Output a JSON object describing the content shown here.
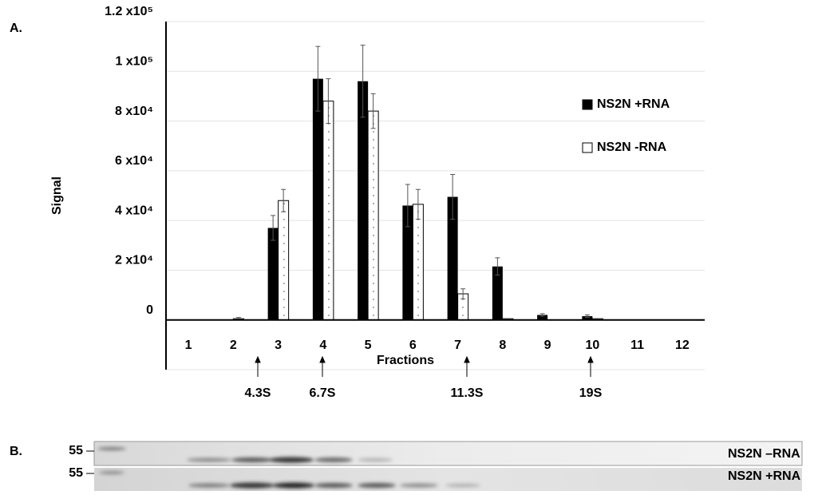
{
  "panel_a_label": "A.",
  "panel_b_label": "B.",
  "chart_data": {
    "type": "bar",
    "y_label": "Signal",
    "x_label": "Fractions",
    "categories": [
      "1",
      "2",
      "3",
      "4",
      "5",
      "6",
      "7",
      "8",
      "9",
      "10",
      "11",
      "12"
    ],
    "series": [
      {
        "name": "NS2N +RNA",
        "color": "#000000",
        "values": [
          0,
          0,
          37000,
          97000,
          96000,
          46000,
          49500,
          21500,
          2000,
          1500,
          0,
          0
        ],
        "errors": [
          0,
          0,
          5000,
          13000,
          14500,
          8500,
          9000,
          3500,
          500,
          500,
          0,
          0
        ]
      },
      {
        "name": "NS2N -RNA",
        "color": "#ffffff",
        "values": [
          0,
          500,
          48000,
          88000,
          84000,
          46500,
          10500,
          500,
          0,
          500,
          0,
          0
        ],
        "errors": [
          0,
          500,
          4500,
          9000,
          7000,
          6000,
          2000,
          0,
          0,
          0,
          0,
          0
        ]
      }
    ],
    "ylim": [
      -20000,
      120000
    ],
    "yticks": [
      {
        "value": 0,
        "label": "0"
      },
      {
        "value": 20000,
        "label": "2 x10⁴"
      },
      {
        "value": 40000,
        "label": "4 x10⁴"
      },
      {
        "value": 60000,
        "label": "6 x10⁴"
      },
      {
        "value": 80000,
        "label": "8 x10⁴"
      },
      {
        "value": 100000,
        "label": "1 x10⁵"
      },
      {
        "value": 120000,
        "label": "1.2 x10⁵"
      }
    ],
    "grid": true,
    "annotations": [
      "4.3S",
      "6.7S",
      "11.3S",
      "19S"
    ]
  },
  "gel": {
    "marker": [
      "55",
      "55"
    ],
    "lanes": [
      "NS2N –RNA",
      "NS2N +RNA"
    ]
  }
}
